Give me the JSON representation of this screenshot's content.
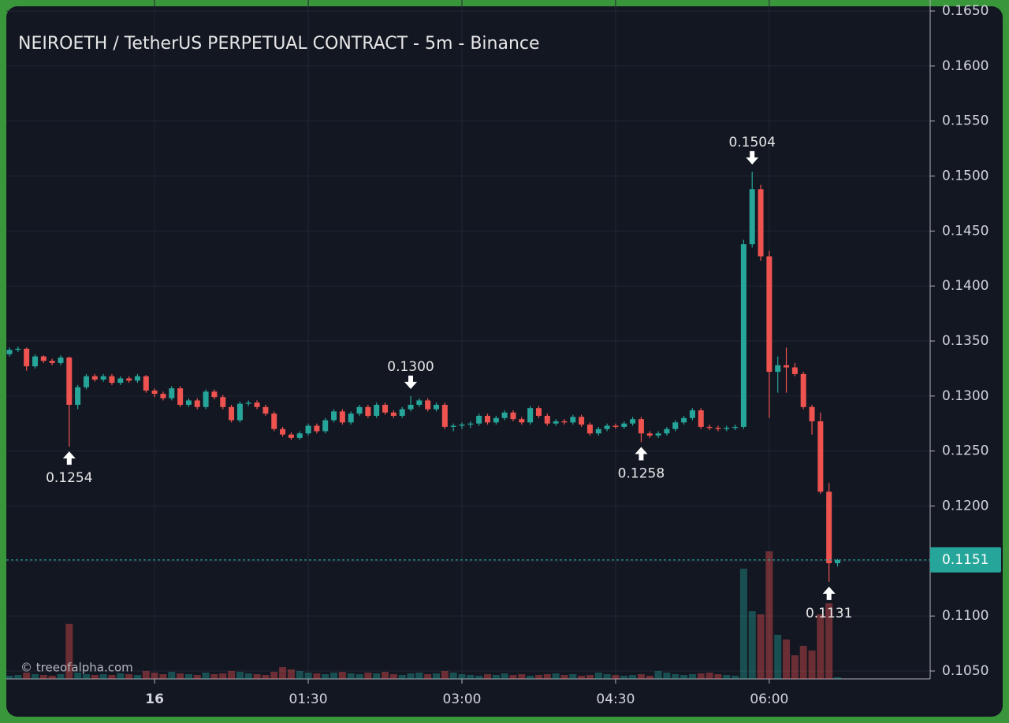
{
  "chart_data": {
    "type": "candlestick",
    "title": "NEIROETH / TetherUS PERPETUAL CONTRACT - 5m - Binance",
    "watermark": "© treeofalpha.com",
    "up_color": "#26a69a",
    "down_color": "#ef5350",
    "grid": true,
    "ylim": [
      0.105,
      0.165
    ],
    "yticks": [
      {
        "value": 0.165,
        "label": "0.1650"
      },
      {
        "value": 0.16,
        "label": "0.1600"
      },
      {
        "value": 0.155,
        "label": "0.1550"
      },
      {
        "value": 0.15,
        "label": "0.1500"
      },
      {
        "value": 0.145,
        "label": "0.1450"
      },
      {
        "value": 0.14,
        "label": "0.1400"
      },
      {
        "value": 0.135,
        "label": "0.1350"
      },
      {
        "value": 0.13,
        "label": "0.1300"
      },
      {
        "value": 0.125,
        "label": "0.1250"
      },
      {
        "value": 0.12,
        "label": "0.1200"
      },
      {
        "value": 0.115,
        "label": "0.1150"
      },
      {
        "value": 0.11,
        "label": "0.1100"
      },
      {
        "value": 0.105,
        "label": "0.1050"
      }
    ],
    "categories": [
      null,
      null,
      null,
      null,
      null,
      null,
      null,
      null,
      null,
      null,
      null,
      null,
      null,
      null,
      null,
      null,
      null,
      "16",
      null,
      null,
      null,
      null,
      null,
      null,
      null,
      null,
      null,
      null,
      null,
      null,
      null,
      null,
      null,
      null,
      null,
      "01:30",
      null,
      null,
      null,
      null,
      null,
      null,
      null,
      null,
      null,
      null,
      null,
      null,
      null,
      null,
      null,
      null,
      null,
      "03:00",
      null,
      null,
      null,
      null,
      null,
      null,
      null,
      null,
      null,
      null,
      null,
      null,
      null,
      null,
      null,
      null,
      null,
      "04:30",
      null,
      null,
      null,
      null,
      null,
      null,
      null,
      null,
      null,
      null,
      null,
      null,
      null,
      null,
      null,
      null,
      null,
      "06:00",
      null,
      null,
      null,
      null,
      null,
      null,
      null,
      null
    ],
    "ohlc": [
      [
        0.1338,
        0.1344,
        0.1336,
        0.1342
      ],
      [
        0.1342,
        0.1345,
        0.134,
        0.1343
      ],
      [
        0.1343,
        0.1344,
        0.1323,
        0.1327
      ],
      [
        0.1327,
        0.1338,
        0.1325,
        0.1336
      ],
      [
        0.1336,
        0.1337,
        0.133,
        0.1332
      ],
      [
        0.1332,
        0.1334,
        0.1328,
        0.133
      ],
      [
        0.133,
        0.1337,
        0.1328,
        0.1335
      ],
      [
        0.1335,
        0.1336,
        0.1254,
        0.1292
      ],
      [
        0.1292,
        0.131,
        0.1288,
        0.1308
      ],
      [
        0.1308,
        0.132,
        0.1306,
        0.1318
      ],
      [
        0.1318,
        0.132,
        0.1313,
        0.1315
      ],
      [
        0.1315,
        0.132,
        0.1313,
        0.1318
      ],
      [
        0.1318,
        0.132,
        0.131,
        0.1312
      ],
      [
        0.1312,
        0.1318,
        0.131,
        0.1316
      ],
      [
        0.1316,
        0.1318,
        0.1312,
        0.1314
      ],
      [
        0.1314,
        0.132,
        0.1312,
        0.1318
      ],
      [
        0.1318,
        0.1319,
        0.1303,
        0.1305
      ],
      [
        0.1305,
        0.1307,
        0.1299,
        0.1302
      ],
      [
        0.1302,
        0.1304,
        0.1296,
        0.1298
      ],
      [
        0.1298,
        0.1309,
        0.1296,
        0.1307
      ],
      [
        0.1307,
        0.1309,
        0.129,
        0.1292
      ],
      [
        0.1292,
        0.1298,
        0.129,
        0.1296
      ],
      [
        0.1296,
        0.1298,
        0.1288,
        0.129
      ],
      [
        0.129,
        0.1306,
        0.1288,
        0.1304
      ],
      [
        0.1304,
        0.1306,
        0.1297,
        0.1299
      ],
      [
        0.1299,
        0.1301,
        0.1288,
        0.129
      ],
      [
        0.129,
        0.1292,
        0.1276,
        0.1278
      ],
      [
        0.1278,
        0.1295,
        0.1276,
        0.1293
      ],
      [
        0.1293,
        0.1296,
        0.1291,
        0.1294
      ],
      [
        0.1294,
        0.1296,
        0.1288,
        0.129
      ],
      [
        0.129,
        0.1292,
        0.1282,
        0.1284
      ],
      [
        0.1284,
        0.1286,
        0.1268,
        0.127
      ],
      [
        0.127,
        0.1272,
        0.1263,
        0.1265
      ],
      [
        0.1265,
        0.1267,
        0.126,
        0.1262
      ],
      [
        0.1262,
        0.1268,
        0.126,
        0.1266
      ],
      [
        0.1266,
        0.1275,
        0.1264,
        0.1273
      ],
      [
        0.1273,
        0.1275,
        0.1266,
        0.1268
      ],
      [
        0.1268,
        0.128,
        0.1266,
        0.1278
      ],
      [
        0.1278,
        0.1288,
        0.1276,
        0.1286
      ],
      [
        0.1286,
        0.1288,
        0.1274,
        0.1276
      ],
      [
        0.1276,
        0.1286,
        0.1274,
        0.1284
      ],
      [
        0.1284,
        0.1292,
        0.1282,
        0.129
      ],
      [
        0.129,
        0.1292,
        0.128,
        0.1282
      ],
      [
        0.1282,
        0.1294,
        0.128,
        0.1292
      ],
      [
        0.1292,
        0.1294,
        0.1283,
        0.1285
      ],
      [
        0.1285,
        0.1287,
        0.128,
        0.1282
      ],
      [
        0.1282,
        0.129,
        0.128,
        0.1288
      ],
      [
        0.1288,
        0.13,
        0.1286,
        0.1292
      ],
      [
        0.1292,
        0.1298,
        0.129,
        0.1296
      ],
      [
        0.1296,
        0.1298,
        0.1286,
        0.1288
      ],
      [
        0.1288,
        0.1294,
        0.1286,
        0.1292
      ],
      [
        0.1292,
        0.1294,
        0.127,
        0.1272
      ],
      [
        0.1272,
        0.1275,
        0.1268,
        0.1273
      ],
      [
        0.1273,
        0.1276,
        0.127,
        0.1274
      ],
      [
        0.1274,
        0.1277,
        0.1271,
        0.1275
      ],
      [
        0.1275,
        0.1284,
        0.1273,
        0.1282
      ],
      [
        0.1282,
        0.1284,
        0.1274,
        0.1276
      ],
      [
        0.1276,
        0.1282,
        0.1274,
        0.128
      ],
      [
        0.128,
        0.1287,
        0.1278,
        0.1285
      ],
      [
        0.1285,
        0.1287,
        0.1277,
        0.1279
      ],
      [
        0.1279,
        0.1281,
        0.1274,
        0.1276
      ],
      [
        0.1276,
        0.1291,
        0.1274,
        0.1289
      ],
      [
        0.1289,
        0.1291,
        0.128,
        0.1282
      ],
      [
        0.1282,
        0.1284,
        0.1273,
        0.1275
      ],
      [
        0.1275,
        0.1279,
        0.1273,
        0.1277
      ],
      [
        0.1277,
        0.1279,
        0.1274,
        0.1276
      ],
      [
        0.1276,
        0.1283,
        0.1274,
        0.1281
      ],
      [
        0.1281,
        0.1283,
        0.1272,
        0.1274
      ],
      [
        0.1274,
        0.1276,
        0.1264,
        0.1266
      ],
      [
        0.1266,
        0.1272,
        0.1264,
        0.127
      ],
      [
        0.127,
        0.1275,
        0.1268,
        0.1273
      ],
      [
        0.1273,
        0.1275,
        0.127,
        0.1272
      ],
      [
        0.1272,
        0.1277,
        0.127,
        0.1275
      ],
      [
        0.1275,
        0.1281,
        0.1273,
        0.1279
      ],
      [
        0.1279,
        0.1281,
        0.1258,
        0.1266
      ],
      [
        0.1266,
        0.1268,
        0.1262,
        0.1264
      ],
      [
        0.1264,
        0.1268,
        0.1262,
        0.1266
      ],
      [
        0.1266,
        0.1272,
        0.1264,
        0.127
      ],
      [
        0.127,
        0.1278,
        0.1268,
        0.1276
      ],
      [
        0.1276,
        0.1282,
        0.1274,
        0.128
      ],
      [
        0.128,
        0.1289,
        0.1278,
        0.1287
      ],
      [
        0.1287,
        0.1289,
        0.127,
        0.1272
      ],
      [
        0.1272,
        0.1274,
        0.1269,
        0.1271
      ],
      [
        0.1271,
        0.1273,
        0.1268,
        0.127
      ],
      [
        0.127,
        0.1273,
        0.1268,
        0.1271
      ],
      [
        0.1271,
        0.1274,
        0.1269,
        0.1272
      ],
      [
        0.1272,
        0.1442,
        0.127,
        0.1438
      ],
      [
        0.1438,
        0.1504,
        0.1435,
        0.1488
      ],
      [
        0.1488,
        0.1492,
        0.1423,
        0.1427
      ],
      [
        0.1427,
        0.1432,
        0.128,
        0.1322
      ],
      [
        0.1322,
        0.1336,
        0.1303,
        0.1328
      ],
      [
        0.1328,
        0.1344,
        0.1303,
        0.1326
      ],
      [
        0.1326,
        0.133,
        0.1318,
        0.132
      ],
      [
        0.132,
        0.1322,
        0.1288,
        0.129
      ],
      [
        0.129,
        0.1292,
        0.1265,
        0.1277
      ],
      [
        0.1277,
        0.1285,
        0.1211,
        0.1213
      ],
      [
        0.1213,
        0.1221,
        0.1131,
        0.1148
      ],
      [
        0.1148,
        0.1152,
        0.1145,
        0.1151
      ]
    ],
    "volume": [
      4,
      5,
      8,
      6,
      5,
      4,
      6,
      70,
      8,
      6,
      5,
      6,
      5,
      7,
      6,
      5,
      10,
      8,
      6,
      9,
      7,
      6,
      5,
      8,
      6,
      7,
      10,
      9,
      7,
      6,
      5,
      9,
      15,
      12,
      10,
      8,
      7,
      6,
      8,
      9,
      7,
      6,
      8,
      7,
      9,
      6,
      5,
      7,
      8,
      6,
      7,
      10,
      8,
      6,
      5,
      4,
      6,
      5,
      7,
      5,
      6,
      4,
      5,
      6,
      7,
      5,
      6,
      4,
      5,
      8,
      6,
      5,
      4,
      5,
      6,
      4,
      10,
      8,
      6,
      5,
      6,
      7,
      8,
      6,
      5,
      4,
      140,
      86,
      82,
      162,
      56,
      50,
      30,
      42,
      36,
      82,
      96,
      2
    ],
    "annotations": [
      {
        "value": 0.1254,
        "label": "0.1254"
      },
      {
        "value": 0.13,
        "label": "0.1300"
      },
      {
        "value": 0.1258,
        "label": "0.1258"
      },
      {
        "value": 0.1504,
        "label": "0.1504"
      },
      {
        "value": 0.1131,
        "label": "0.1131"
      }
    ],
    "last_price": {
      "value": 0.1151,
      "label": "0.1151"
    }
  }
}
